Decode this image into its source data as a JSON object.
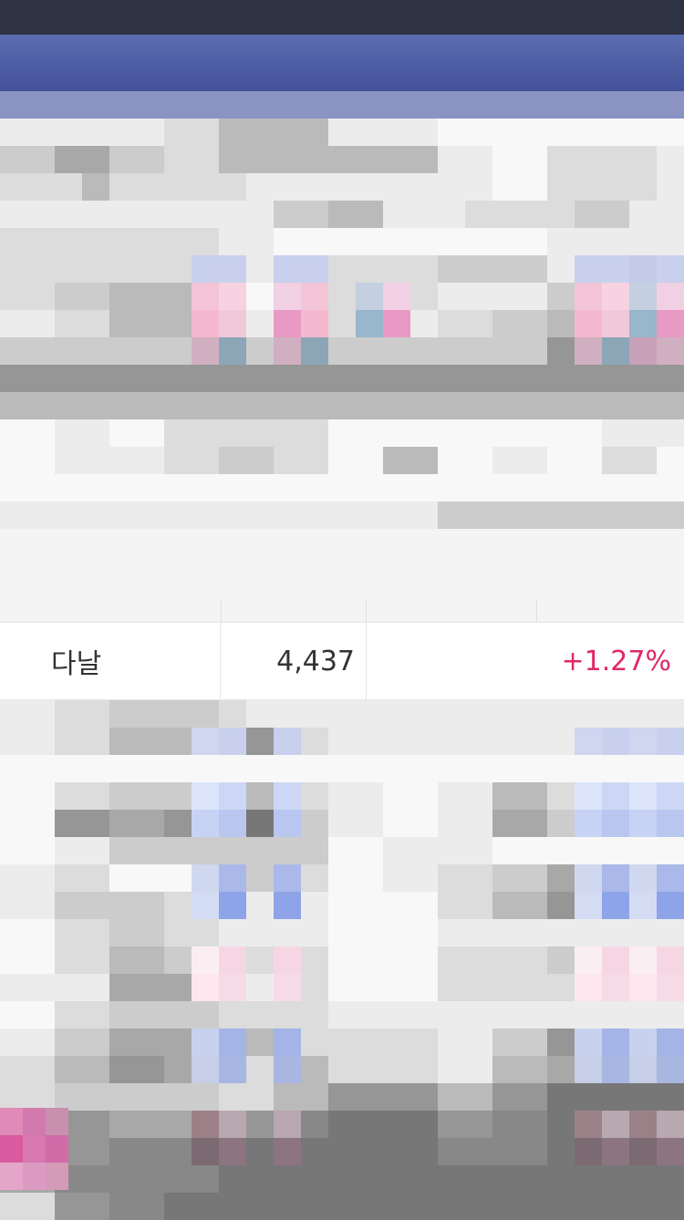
{
  "stock_row": {
    "name": "다날",
    "price": "4,437",
    "change": "+1.27%"
  },
  "colors": {
    "change_positive": "#e0286a",
    "nav_blue": "#4a589e",
    "text_dark": "#333333"
  }
}
